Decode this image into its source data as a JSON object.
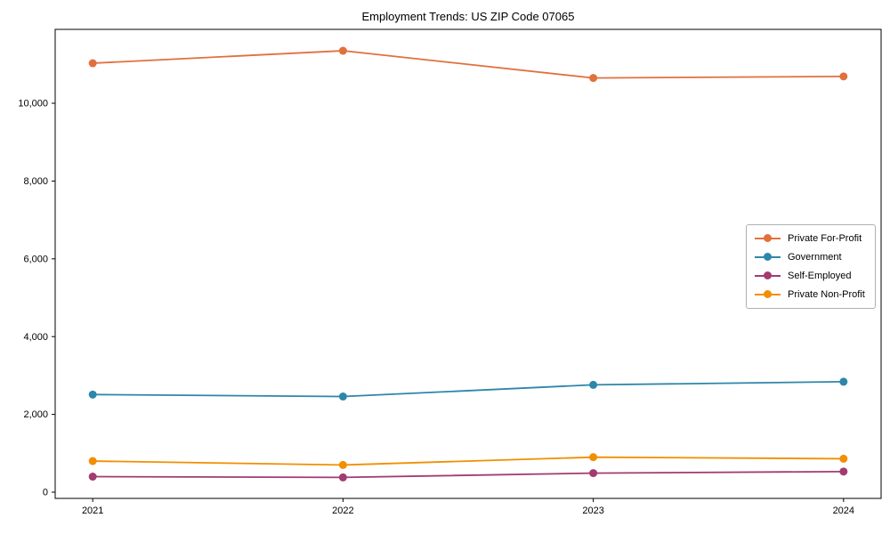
{
  "chart_data": {
    "type": "line",
    "title": "Employment Trends: US ZIP Code 07065",
    "x": [
      2021,
      2022,
      2023,
      2024
    ],
    "xtick_labels": [
      "2021",
      "2022",
      "2023",
      "2024"
    ],
    "ytick_values": [
      0,
      2000,
      4000,
      6000,
      8000,
      10000
    ],
    "ytick_labels": [
      "0",
      "2,000",
      "4,000",
      "6,000",
      "8,000",
      "10,000"
    ],
    "xlim": [
      2020.85,
      2024.15
    ],
    "ylim": [
      -160,
      11900
    ],
    "grid": false,
    "legend_position": "center-right",
    "background_color": "#ffffff",
    "axis_color": "#000000",
    "series": [
      {
        "name": "Private For-Profit",
        "color": "#e1703c",
        "values": [
          11030,
          11350,
          10650,
          10690
        ]
      },
      {
        "name": "Government",
        "color": "#2e86ab",
        "values": [
          2510,
          2460,
          2760,
          2840
        ]
      },
      {
        "name": "Self-Employed",
        "color": "#a23b72",
        "values": [
          400,
          380,
          490,
          530
        ]
      },
      {
        "name": "Private Non-Profit",
        "color": "#f18f01",
        "values": [
          800,
          700,
          900,
          860
        ]
      }
    ]
  }
}
